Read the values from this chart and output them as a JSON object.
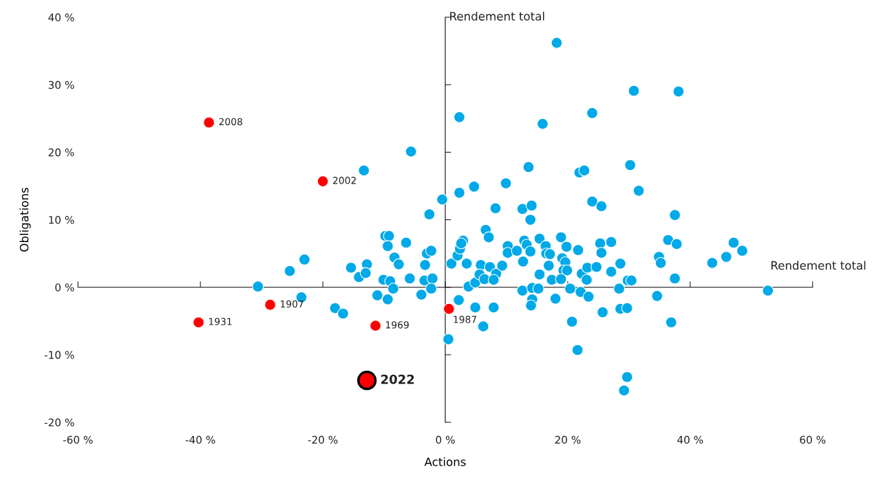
{
  "chart_data": {
    "type": "scatter",
    "xlabel": "Actions",
    "ylabel": "Obligations",
    "marker": "circle",
    "xlim": [
      -60,
      60
    ],
    "ylim": [
      -20,
      40
    ],
    "xticks": [
      {
        "value": -60,
        "label": "-60 %"
      },
      {
        "value": -40,
        "label": "-40 %"
      },
      {
        "value": -20,
        "label": "-20 %"
      },
      {
        "value": 0,
        "label": "0 %"
      },
      {
        "value": 20,
        "label": "20 %"
      },
      {
        "value": 40,
        "label": "40 %"
      },
      {
        "value": 60,
        "label": "60 %"
      }
    ],
    "yticks": [
      {
        "value": -20,
        "label": "-20 %"
      },
      {
        "value": -10,
        "label": "-10 %"
      },
      {
        "value": 0,
        "label": "0 %"
      },
      {
        "value": 10,
        "label": "10 %"
      },
      {
        "value": 20,
        "label": "20 %"
      },
      {
        "value": 30,
        "label": "30 %"
      },
      {
        "value": 40,
        "label": "40 %"
      }
    ],
    "series": [
      {
        "color": "#00a9e8",
        "x": [
          18.2,
          2.3,
          15.9,
          24.0,
          -5.6,
          -13.3,
          13.6,
          21.9,
          22.7,
          9.9,
          4.7,
          2.3,
          -0.5,
          -2.6,
          8.2,
          12.6,
          14.1,
          13.9,
          24.0,
          25.5,
          30.8,
          38.1,
          30.2,
          31.6,
          37.5,
          -23.0,
          -25.4,
          -30.6,
          -23.5,
          -18.0,
          -16.7,
          -9.8,
          -9.2,
          -9.4,
          -6.4,
          -15.4,
          -12.8,
          -14.1,
          -13.0,
          -8.3,
          -7.6,
          -10.1,
          -9.0,
          -8.5,
          -11.1,
          -9.4,
          -5.8,
          -3.0,
          -2.3,
          -3.3,
          -3.4,
          -2.1,
          -2.3,
          -3.9,
          0.5,
          2.2,
          1.0,
          2.0,
          2.4,
          2.9,
          2.6,
          3.5,
          6.6,
          7.1,
          3.8,
          4.9,
          4.9,
          6.2,
          7.9,
          5.8,
          5.6,
          6.4,
          7.3,
          8.3,
          7.9,
          9.3,
          10.2,
          10.2,
          11.7,
          12.9,
          13.3,
          13.9,
          12.7,
          12.6,
          14.2,
          15.2,
          14.2,
          14.0,
          15.4,
          16.4,
          16.5,
          17.1,
          16.9,
          15.4,
          17.4,
          18.9,
          19.8,
          19.1,
          19.6,
          19.3,
          19.9,
          18.9,
          18.0,
          20.4,
          21.7,
          22.1,
          22.3,
          23.1,
          23.2,
          23.4,
          24.7,
          25.3,
          25.5,
          25.7,
          20.7,
          21.6,
          27.1,
          28.6,
          27.1,
          29.8,
          30.4,
          28.4,
          28.6,
          29.7,
          29.7,
          29.2,
          34.6,
          34.9,
          35.2,
          36.4,
          37.8,
          37.5,
          36.9,
          43.6,
          45.9,
          47.1,
          48.5,
          52.7
        ],
        "values": [
          36.2,
          25.2,
          24.2,
          25.8,
          20.1,
          17.3,
          17.8,
          17.0,
          17.3,
          15.4,
          14.9,
          14.0,
          13.0,
          10.8,
          11.7,
          11.6,
          12.1,
          10.0,
          12.7,
          12.0,
          29.1,
          29.0,
          18.1,
          14.3,
          10.7,
          4.1,
          2.4,
          0.1,
          -1.5,
          -3.1,
          -3.9,
          7.6,
          7.6,
          6.1,
          6.6,
          2.9,
          3.4,
          1.5,
          2.1,
          4.4,
          3.4,
          1.1,
          0.9,
          -0.2,
          -1.2,
          -1.8,
          1.3,
          5.0,
          5.4,
          3.3,
          1.0,
          1.3,
          -0.2,
          -1.1,
          -7.7,
          -1.9,
          3.5,
          4.7,
          5.7,
          6.9,
          6.5,
          3.5,
          8.5,
          7.4,
          0.1,
          0.7,
          -3.0,
          -5.8,
          -3.0,
          3.3,
          1.9,
          1.2,
          3.0,
          2.0,
          1.1,
          3.2,
          6.1,
          5.1,
          5.4,
          6.9,
          6.3,
          5.3,
          3.8,
          -0.5,
          -0.1,
          -0.2,
          -1.8,
          -2.7,
          7.2,
          6.1,
          5.0,
          4.9,
          3.2,
          1.9,
          1.1,
          7.4,
          6.0,
          4.3,
          3.7,
          2.5,
          2.5,
          1.2,
          -1.7,
          -0.2,
          5.5,
          -0.7,
          2.0,
          1.1,
          2.9,
          -1.4,
          3.0,
          6.5,
          5.1,
          -3.7,
          -5.1,
          -9.3,
          6.7,
          3.5,
          2.3,
          1.0,
          1.0,
          -0.2,
          -3.2,
          -3.1,
          -13.3,
          -15.3,
          -1.3,
          4.5,
          3.6,
          7.0,
          6.4,
          1.3,
          -5.2,
          3.6,
          4.5,
          6.6,
          5.4,
          -0.5
        ]
      },
      {
        "color": "#ff0000",
        "x": [
          -38.6,
          -20.0,
          -28.6,
          -40.3,
          -11.4,
          0.6
        ],
        "values": [
          24.4,
          15.7,
          -2.6,
          -5.2,
          -5.7,
          -3.2
        ]
      },
      {
        "type": "bubble",
        "color": "#ff0000",
        "x": [
          -12.8
        ],
        "values": [
          -13.8
        ],
        "sizes": [
          1
        ]
      }
    ],
    "annotations": [
      "Rendement total",
      "Rendement total",
      {
        "text": "2008",
        "x": -38.6,
        "y": 24.4
      },
      {
        "text": "2002",
        "x": -20.0,
        "y": 15.7
      },
      {
        "text": "1907",
        "x": -28.6,
        "y": -2.6
      },
      {
        "text": "1931",
        "x": -40.3,
        "y": -5.2
      },
      {
        "text": "1969",
        "x": -11.4,
        "y": -5.7
      },
      {
        "text": "1987",
        "x": 0.6,
        "y": -3.2
      },
      {
        "text": "2022",
        "x": -12.8,
        "y": -13.8
      }
    ]
  }
}
